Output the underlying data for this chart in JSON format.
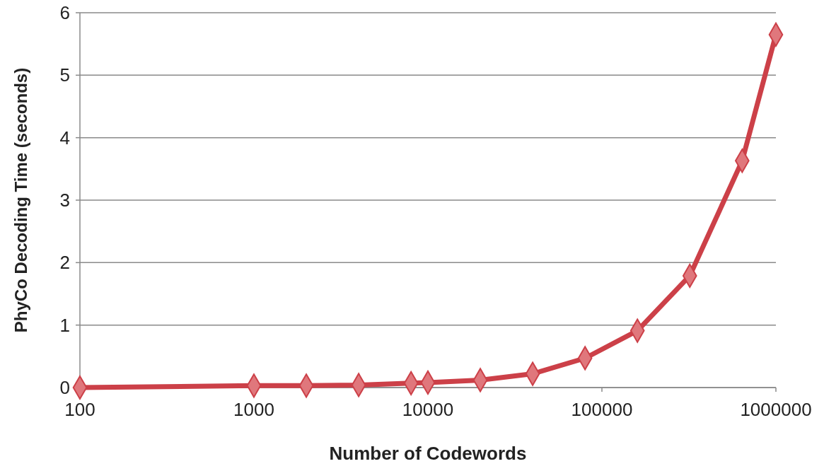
{
  "chart_data": {
    "type": "line",
    "xlabel": "Number of Codewords",
    "ylabel": "PhyCo Decoding Time (seconds)",
    "x": [
      100,
      1000,
      2000,
      4000,
      8000,
      10000,
      20000,
      40000,
      80000,
      160000,
      320000,
      640000,
      1000000
    ],
    "series": [
      {
        "color": "#cc4048",
        "values": [
          0.0,
          0.03,
          0.03,
          0.04,
          0.07,
          0.08,
          0.12,
          0.22,
          0.47,
          0.91,
          1.79,
          3.63,
          5.65
        ]
      }
    ],
    "log": "x",
    "xlim": [
      100,
      1000000
    ],
    "xticks": [
      100,
      1000,
      10000,
      100000,
      1000000
    ],
    "ylim": [
      0,
      6
    ],
    "yticks": [
      0,
      1,
      2,
      3,
      4,
      5,
      6
    ],
    "grid": "y",
    "marker": "diamond",
    "line_style": "solid"
  }
}
